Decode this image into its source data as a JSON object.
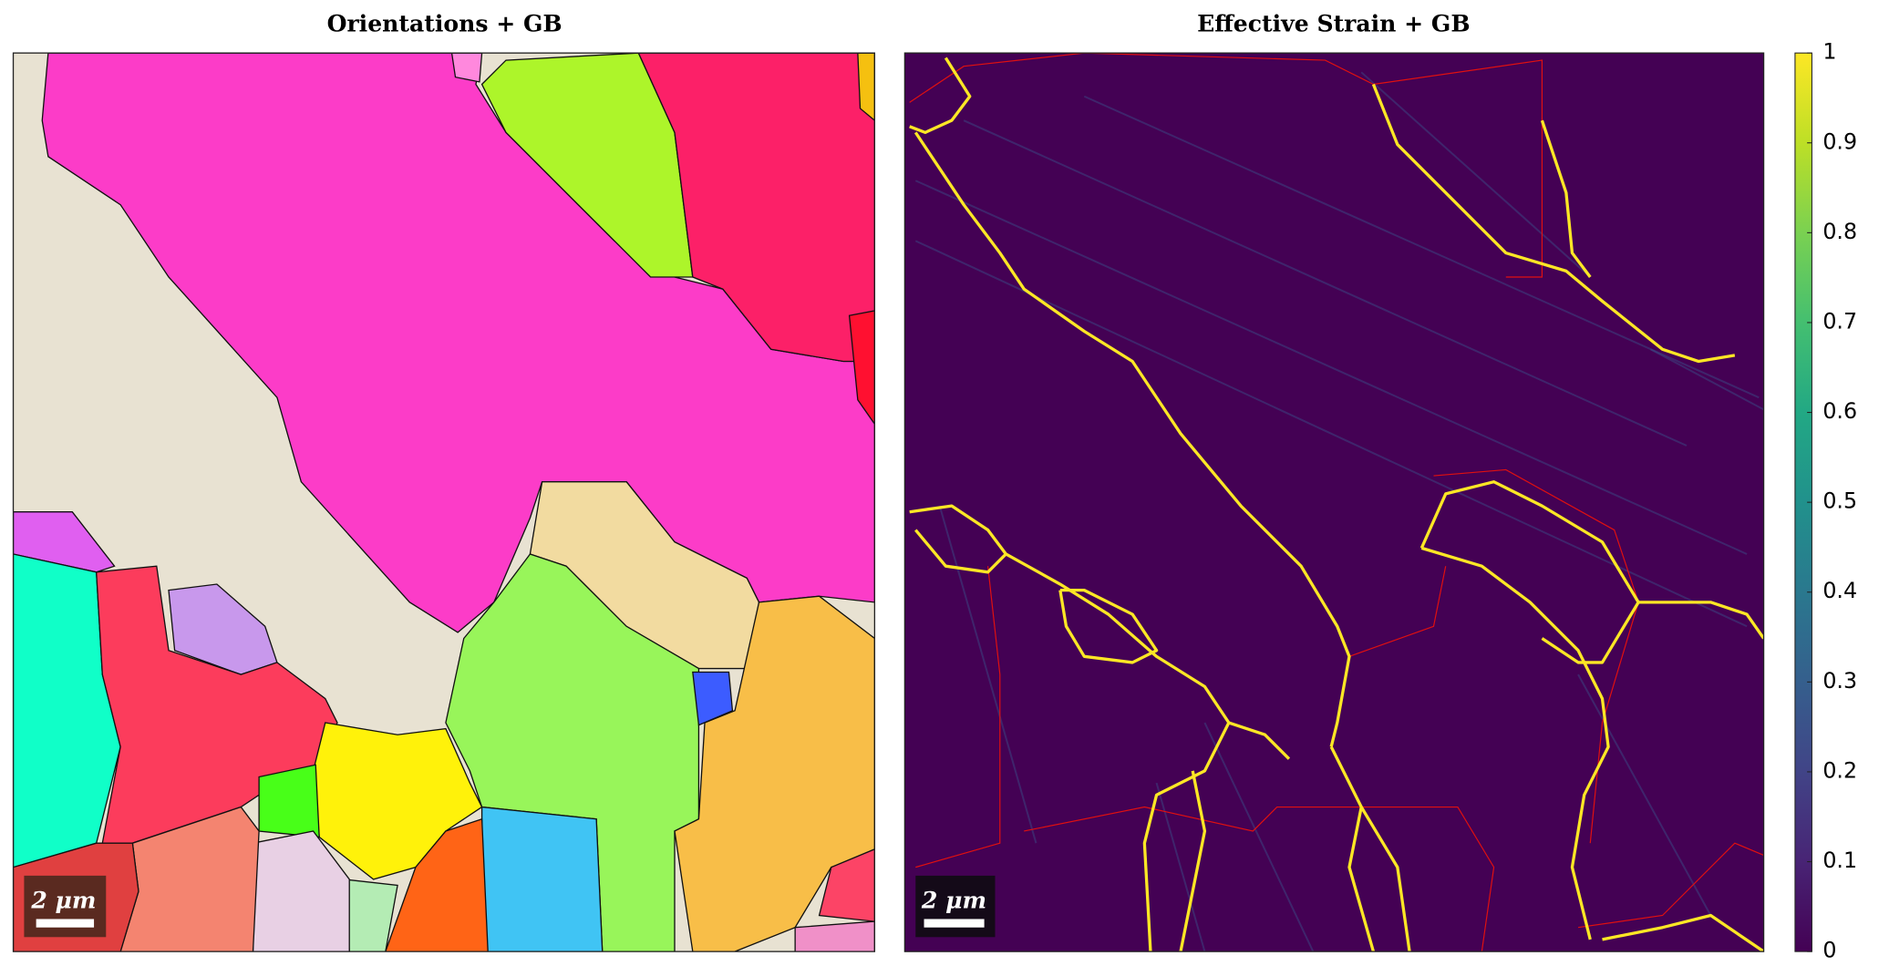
{
  "chart_data": [
    {
      "type": "map",
      "title": "Orientations + GB",
      "scale_bar": "2 μm"
    },
    {
      "type": "heatmap",
      "title": "Effective Strain + GB",
      "scale_bar": "2 μm",
      "clim": [
        0,
        1
      ],
      "cticks": [
        0,
        0.1,
        0.2,
        0.3,
        0.4,
        0.5,
        0.6,
        0.7,
        0.8,
        0.9,
        1
      ]
    }
  ]
}
